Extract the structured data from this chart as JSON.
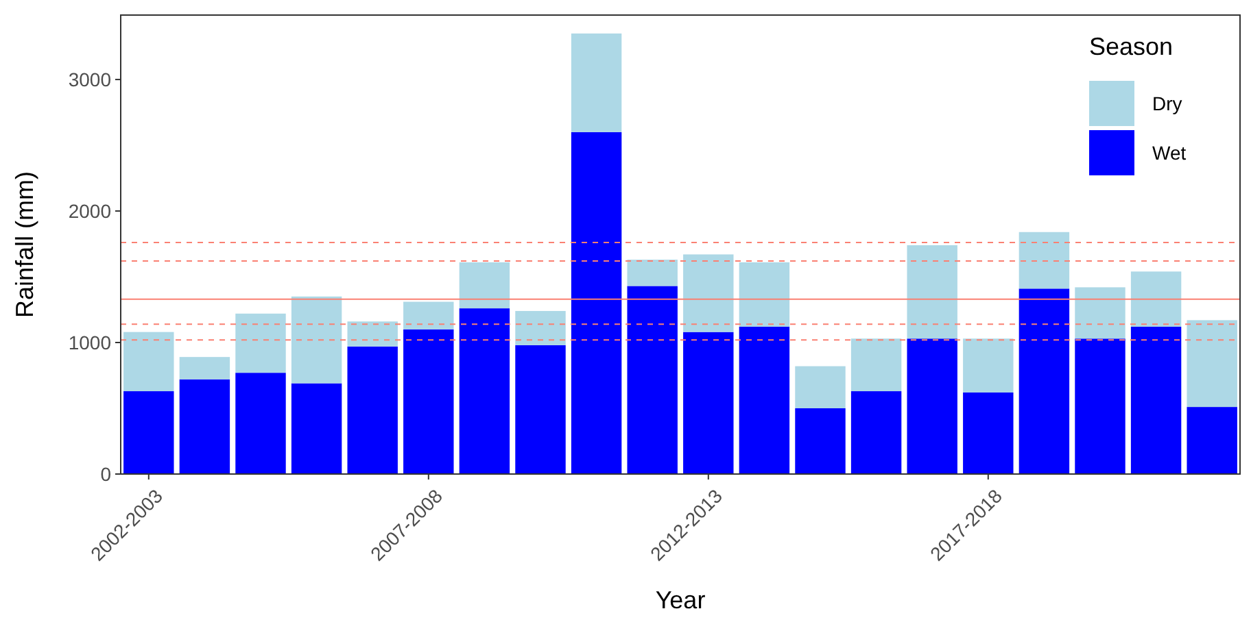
{
  "chart_data": {
    "type": "bar",
    "stacked": true,
    "xlabel": "Year",
    "ylabel": "Rainfall (mm)",
    "legend_title": "Season",
    "legend": "top right",
    "grid": false,
    "categories": [
      "2002-2003",
      null,
      null,
      null,
      null,
      "2007-2008",
      null,
      null,
      null,
      null,
      "2012-2013",
      null,
      null,
      null,
      null,
      "2017-2018",
      null,
      null,
      null,
      null
    ],
    "ylim": [
      0,
      3490
    ],
    "yticks": [
      0,
      1000,
      2000,
      3000
    ],
    "series": [
      {
        "name": "Wet",
        "color": "#0000ff",
        "values": [
          630,
          720,
          770,
          690,
          970,
          1100,
          1260,
          980,
          2600,
          1430,
          1080,
          1120,
          500,
          630,
          1030,
          620,
          1410,
          1030,
          1120,
          510
        ]
      },
      {
        "name": "Dry",
        "color": "#add8e6",
        "values": [
          450,
          170,
          450,
          660,
          190,
          210,
          350,
          260,
          750,
          200,
          590,
          490,
          320,
          400,
          710,
          410,
          430,
          390,
          420,
          660
        ]
      }
    ],
    "ref_lines": [
      {
        "axis": "y",
        "value": 1760,
        "color": "#fa8072",
        "line_style": "dashed"
      },
      {
        "axis": "y",
        "value": 1620,
        "color": "#fa8072",
        "line_style": "dashed"
      },
      {
        "axis": "y",
        "value": 1330,
        "color": "#fa8072",
        "line_style": "solid"
      },
      {
        "axis": "y",
        "value": 1140,
        "color": "#fa8072",
        "line_style": "dashed"
      },
      {
        "axis": "y",
        "value": 1020,
        "color": "#fa8072",
        "line_style": "dashed"
      }
    ]
  }
}
